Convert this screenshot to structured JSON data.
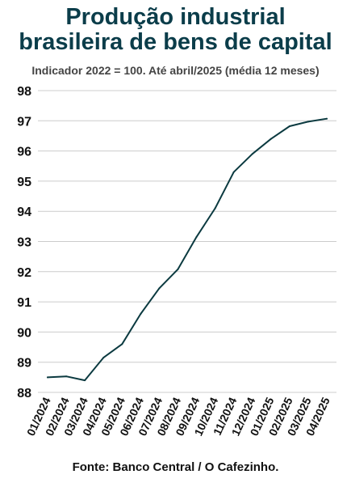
{
  "header": {
    "title_line1": "Produção industrial",
    "title_line2": "brasileira de bens de capital",
    "subtitle": "Indicador 2022 = 100. Até abril/2025 (média 12 meses)"
  },
  "footer": {
    "source": "Fonte: Banco Central / O Cafezinho."
  },
  "colors": {
    "line": "#0b3a40",
    "grid": "#cccccc",
    "title": "#0b3d4a"
  },
  "chart_data": {
    "type": "line",
    "title": "Produção industrial brasileira de bens de capital",
    "subtitle": "Indicador 2022 = 100. Até abril/2025 (média 12 meses)",
    "xlabel": "",
    "ylabel": "",
    "categories": [
      "01/2024",
      "02/2024",
      "03/2024",
      "04/2024",
      "05/2024",
      "06/2024",
      "07/2024",
      "08/2024",
      "09/2024",
      "10/2024",
      "11/2024",
      "12/2024",
      "01/2025",
      "02/2025",
      "03/2025",
      "04/2025"
    ],
    "series": [
      {
        "values": [
          88.5,
          88.53,
          88.4,
          89.15,
          89.6,
          90.6,
          91.45,
          92.08,
          93.15,
          94.1,
          95.3,
          95.9,
          96.4,
          96.82,
          96.97,
          97.07
        ]
      }
    ],
    "ylim": [
      88,
      98
    ],
    "yticks": [
      88,
      89,
      90,
      91,
      92,
      93,
      94,
      95,
      96,
      97,
      98
    ],
    "grid": true,
    "legend": "none"
  }
}
